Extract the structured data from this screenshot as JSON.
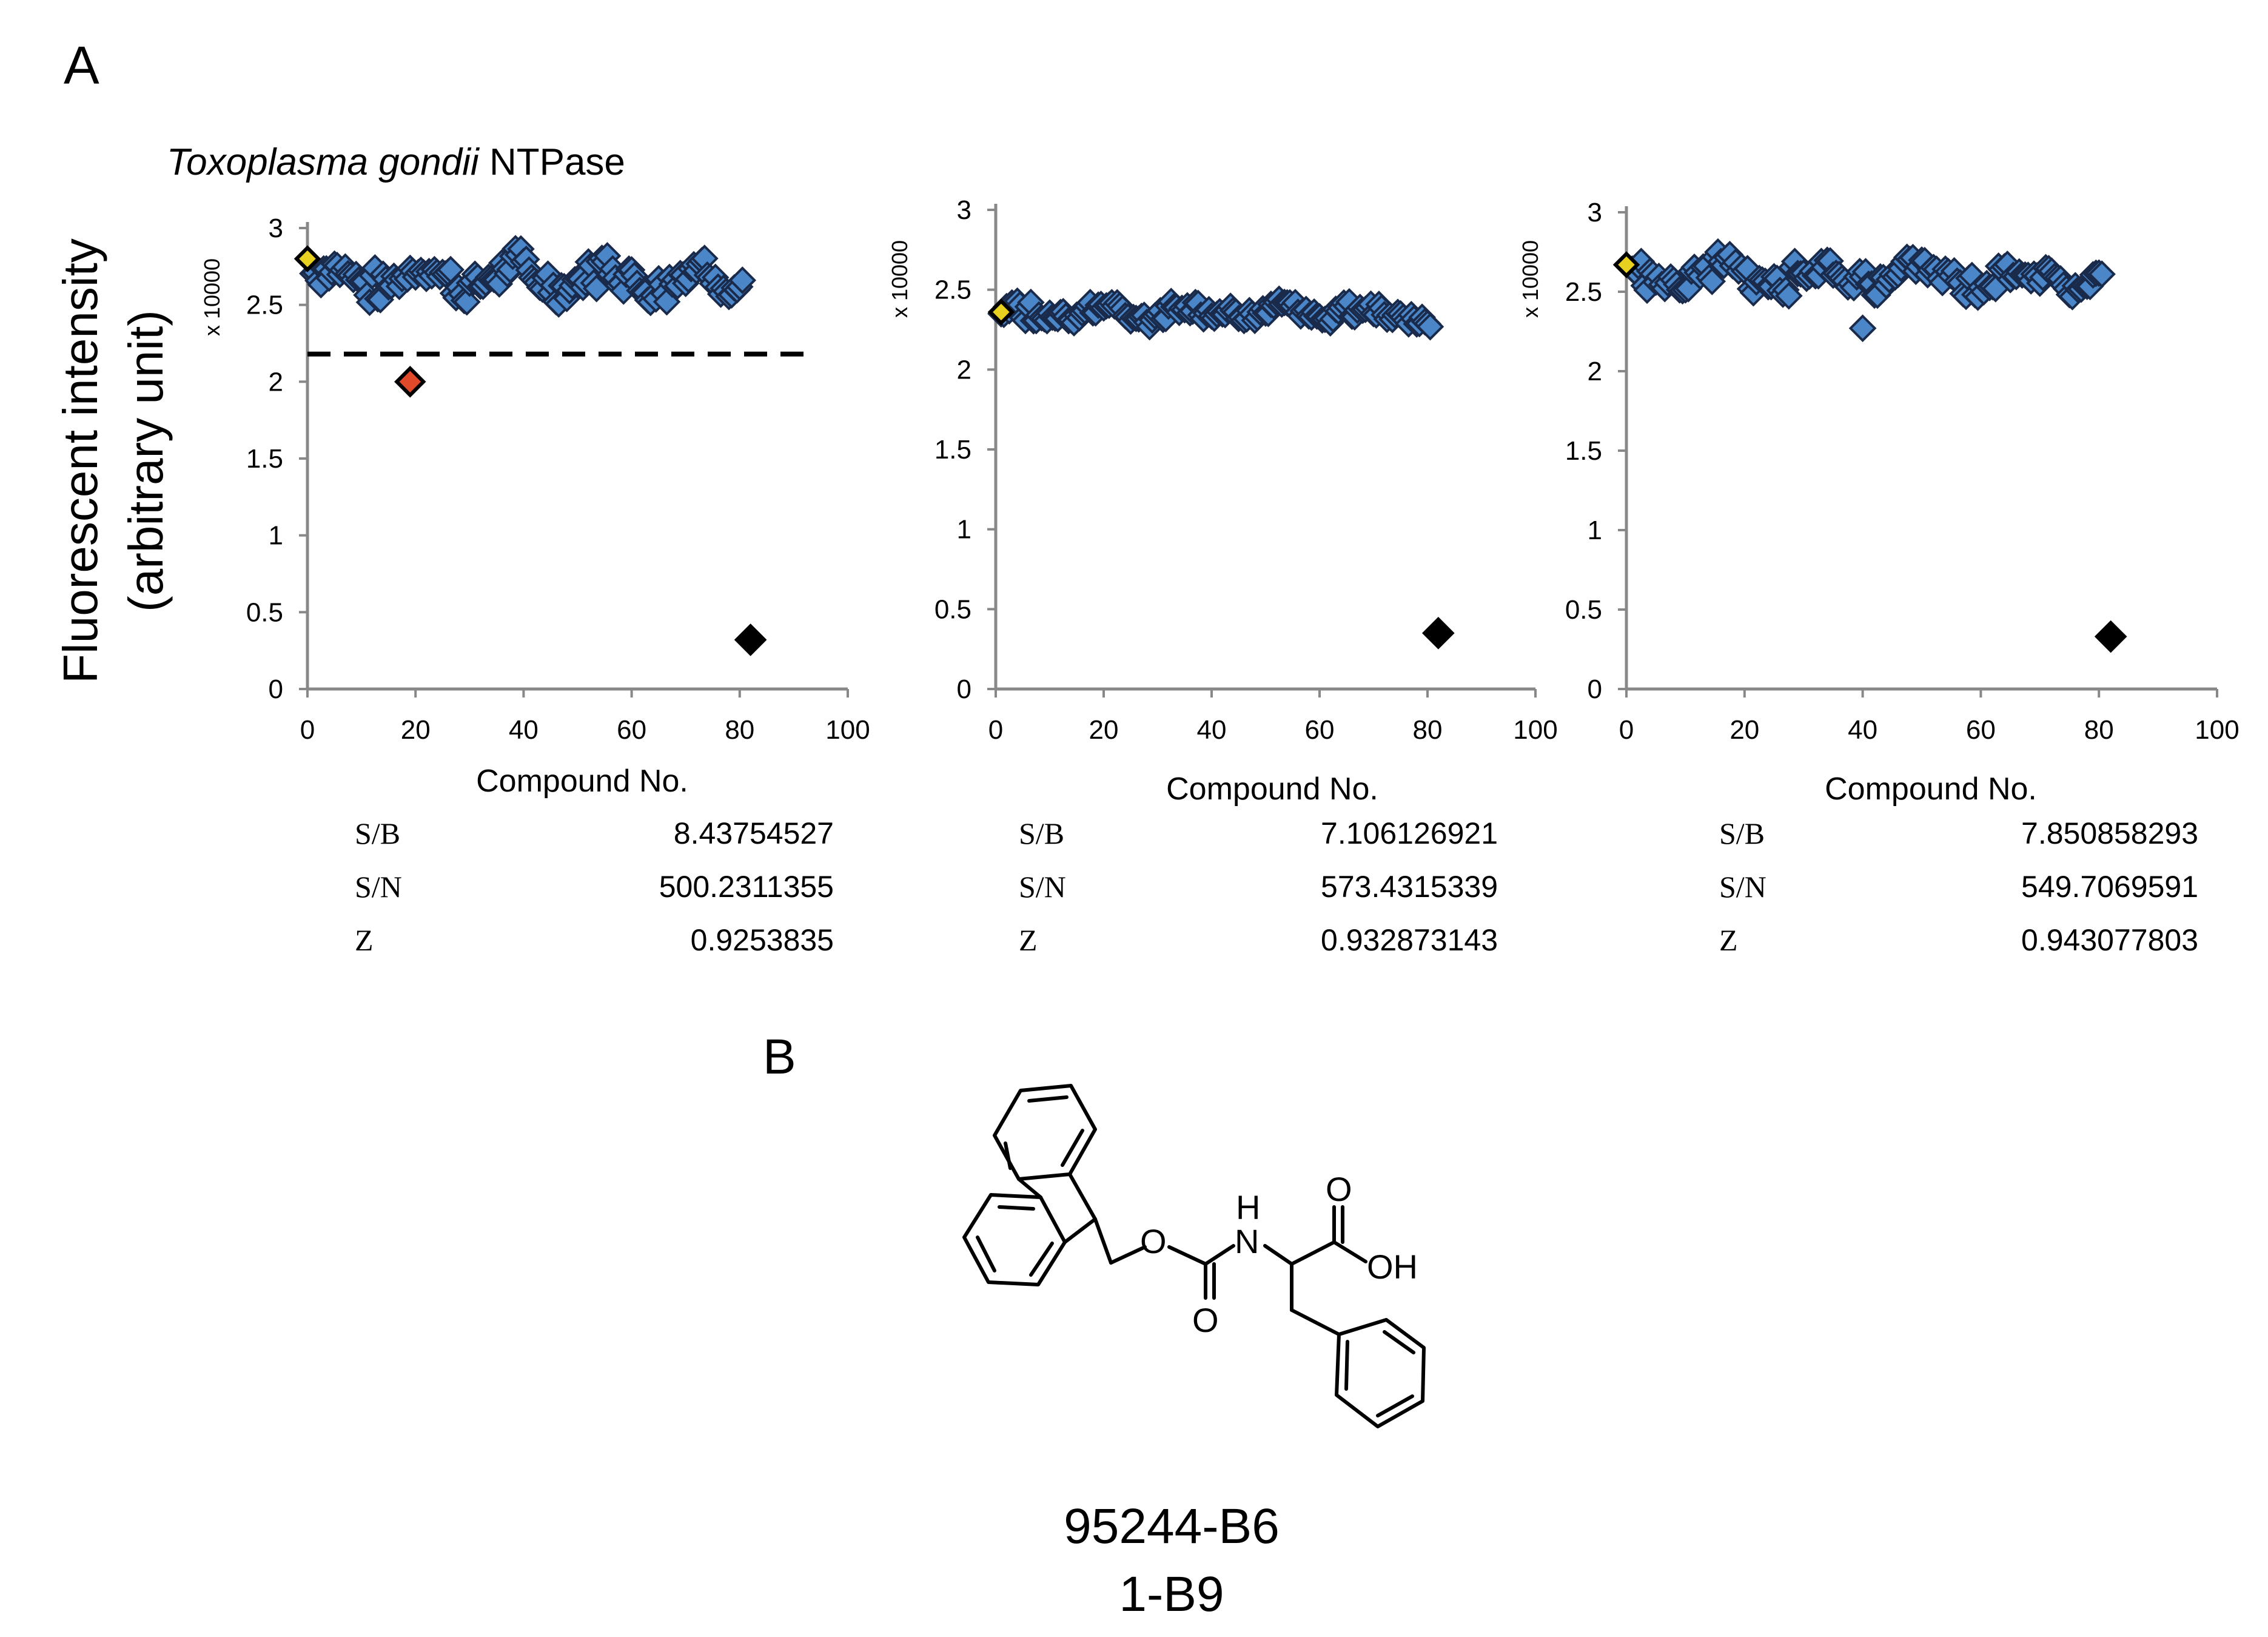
{
  "panel_a_label": "A",
  "panel_b_label": "B",
  "organism_title": {
    "italic": "Toxoplasma gondii",
    "regular": " NTPase"
  },
  "y_axis_label": {
    "line1": "Fluorescent intensity",
    "line2": "(arbitrary unit)"
  },
  "compound_ids": {
    "line1": "95244-B6",
    "line2": "1-B9"
  },
  "molecule_labels": {
    "O_ester": "O",
    "O_carbonyl": "O",
    "H": "H",
    "N": "N",
    "O_acid": "O",
    "OH": "OH"
  },
  "colors": {
    "point": "#4a86c8",
    "highlight": "#e04a2a",
    "control": "#000000",
    "yellow_control": "#e8d020"
  },
  "chart_data": [
    {
      "type": "scatter",
      "xlabel": "Compound No.",
      "ylabel": "x 10000",
      "xlim": [
        0,
        100
      ],
      "ylim": [
        0,
        3
      ],
      "xticks": [
        "0",
        "20",
        "40",
        "60",
        "80",
        "100"
      ],
      "yticks": [
        "0",
        "0.5",
        "1",
        "1.5",
        "2",
        "2.5",
        "3"
      ],
      "threshold": 2.18,
      "baseline": 2.68,
      "amplitude": 0.13,
      "highlight_points": [
        {
          "x": 19,
          "y": 2.0
        }
      ],
      "control_points": [
        {
          "x": 82,
          "y": 0.32
        }
      ],
      "start_point": {
        "x": 0,
        "y": 2.8
      },
      "stats": [
        {
          "label": "S/B",
          "value": "8.43754527"
        },
        {
          "label": "S/N",
          "value": "500.2311355"
        },
        {
          "label": "Z",
          "value": "0.9253835"
        }
      ]
    },
    {
      "type": "scatter",
      "xlabel": "Compound No.",
      "ylabel": "x 10000",
      "xlim": [
        0,
        100
      ],
      "ylim": [
        0,
        3
      ],
      "xticks": [
        "0",
        "20",
        "40",
        "60",
        "80",
        "100"
      ],
      "yticks": [
        "0",
        "0.5",
        "1",
        "1.5",
        "2",
        "2.5",
        "3"
      ],
      "baseline": 2.36,
      "amplitude": 0.07,
      "control_points": [
        {
          "x": 82,
          "y": 0.35
        }
      ],
      "start_point": {
        "x": 1,
        "y": 2.36
      },
      "stats": [
        {
          "label": "S/B",
          "value": "7.106126921"
        },
        {
          "label": "S/N",
          "value": "573.4315339"
        },
        {
          "label": "Z",
          "value": "0.932873143"
        }
      ]
    },
    {
      "type": "scatter",
      "xlabel": "Compound No.",
      "ylabel": "x 10000",
      "xlim": [
        0,
        100
      ],
      "ylim": [
        0,
        3
      ],
      "xticks": [
        "0",
        "20",
        "40",
        "60",
        "80",
        "100"
      ],
      "yticks": [
        "0",
        "0.5",
        "1",
        "1.5",
        "2",
        "2.5",
        "3"
      ],
      "baseline": 2.6,
      "amplitude": 0.1,
      "outlier_points": [
        {
          "x": 40,
          "y": 2.27
        }
      ],
      "control_points": [
        {
          "x": 82,
          "y": 0.33
        }
      ],
      "start_point": {
        "x": 0,
        "y": 2.67
      },
      "stats": [
        {
          "label": "S/B",
          "value": "7.850858293"
        },
        {
          "label": "S/N",
          "value": "549.7069591"
        },
        {
          "label": "Z",
          "value": "0.943077803"
        }
      ]
    }
  ]
}
